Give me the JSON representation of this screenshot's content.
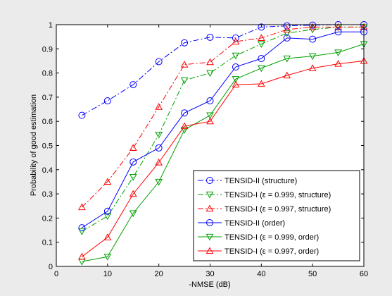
{
  "chart_data": {
    "type": "line",
    "title": "",
    "xlabel": "-NMSE (dB)",
    "ylabel": "Probability of good estimation",
    "xlim": [
      0,
      60
    ],
    "ylim": [
      0,
      1
    ],
    "x_ticks": [
      0,
      10,
      20,
      30,
      40,
      50,
      60
    ],
    "y_ticks": [
      0,
      0.1,
      0.2,
      0.3,
      0.4,
      0.5,
      0.6,
      0.7,
      0.8,
      0.9,
      1
    ],
    "x_tick_labels": [
      "0",
      "10",
      "20",
      "30",
      "40",
      "50",
      "60"
    ],
    "y_tick_labels": [
      "0",
      "0.1",
      "0.2",
      "0.3",
      "0.4",
      "0.5",
      "0.6",
      "0.7",
      "0.8",
      "0.9",
      "1"
    ],
    "grid": false,
    "legend_position": "bottom-right",
    "x": [
      5,
      10,
      15,
      20,
      25,
      30,
      35,
      40,
      45,
      50,
      55,
      60
    ],
    "series": [
      {
        "name": "TENSID-II (structure)",
        "color": "#0000ff",
        "dash": "dashdot",
        "marker": "circle",
        "values": [
          0.625,
          0.685,
          0.752,
          0.847,
          0.925,
          0.948,
          0.945,
          0.99,
          0.995,
          0.998,
          1.0,
          1.0
        ]
      },
      {
        "name": "TENSID-I (ε = 0.999, structure)",
        "color": "#00a000",
        "dash": "dashdot",
        "marker": "triangle-down",
        "values": [
          0.145,
          0.208,
          0.37,
          0.545,
          0.77,
          0.8,
          0.872,
          0.92,
          0.965,
          0.98,
          0.99,
          0.99
        ]
      },
      {
        "name": "TENSID-I (ε = 0.997, structure)",
        "color": "#ff0000",
        "dash": "dashdot",
        "marker": "triangle-up",
        "values": [
          0.245,
          0.35,
          0.49,
          0.66,
          0.835,
          0.845,
          0.93,
          0.945,
          0.98,
          0.99,
          0.99,
          0.99
        ]
      },
      {
        "name": "TENSID-II (order)",
        "color": "#0000ff",
        "dash": "solid",
        "marker": "circle",
        "values": [
          0.16,
          0.228,
          0.432,
          0.49,
          0.635,
          0.685,
          0.825,
          0.86,
          0.945,
          0.94,
          0.97,
          0.97
        ]
      },
      {
        "name": "TENSID-I (ε = 0.999, order)",
        "color": "#00a000",
        "dash": "solid",
        "marker": "triangle-down",
        "values": [
          0.02,
          0.04,
          0.22,
          0.35,
          0.565,
          0.625,
          0.775,
          0.82,
          0.86,
          0.87,
          0.885,
          0.92
        ]
      },
      {
        "name": "TENSID-I (ε = 0.997, order)",
        "color": "#ff0000",
        "dash": "solid",
        "marker": "triangle-up",
        "values": [
          0.04,
          0.12,
          0.3,
          0.43,
          0.58,
          0.6,
          0.752,
          0.755,
          0.79,
          0.82,
          0.838,
          0.85
        ]
      }
    ]
  }
}
